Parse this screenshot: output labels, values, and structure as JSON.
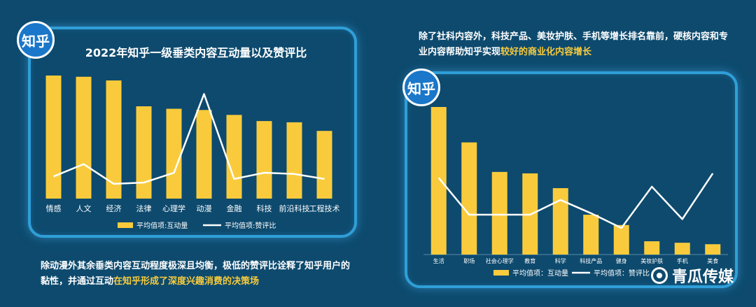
{
  "header": {
    "desc_right_part1": "除了社科内容外，科技产品、美妆护肤、手机等增长排名靠前，硬核内容和专业内容帮助知乎实现",
    "desc_right_highlight": "较好的商业化内容增长"
  },
  "badges": {
    "left": "知乎",
    "right": "知乎"
  },
  "footer": {
    "desc_left_part1": "除动漫外其余垂类内容互动程度极深且均衡，极低的赞评比诠释了知乎用户的黏性，并通过互动",
    "desc_left_highlight": "在知乎形成了深度兴趣消费的决策场"
  },
  "brand": {
    "name": "青瓜传媒"
  },
  "colors": {
    "bar": "#f9cb3c",
    "line": "#ffffff",
    "background": "#0d4a6e",
    "panel_border": "#2f9fd8"
  },
  "chart_data": [
    {
      "type": "bar",
      "title": "2022年知乎一级垂类内容互动量以及赞评比",
      "categories": [
        "情感",
        "人文",
        "经济",
        "法律",
        "心理学",
        "动漫",
        "金融",
        "科技",
        "前沿科技",
        "工程技术"
      ],
      "series": [
        {
          "name": "平均值项:互动量",
          "type": "bar",
          "values": [
            100,
            99,
            96,
            75,
            73,
            72,
            68,
            63,
            62,
            55
          ]
        },
        {
          "name": "平均值项:赞评比",
          "type": "line",
          "values": [
            18,
            28,
            12,
            13,
            21,
            85,
            16,
            21,
            20,
            16
          ]
        }
      ],
      "ylim": [
        0,
        100
      ],
      "legend": "bottom",
      "grid": false
    },
    {
      "type": "bar",
      "title": "",
      "categories": [
        "生活",
        "职场",
        "社会心理学",
        "教育",
        "科学",
        "科技产品",
        "健身",
        "美妆护肤",
        "手机",
        "美食"
      ],
      "series": [
        {
          "name": "平均值项：互动量",
          "type": "bar",
          "values": [
            100,
            76,
            56,
            55,
            45,
            27,
            20,
            9,
            8,
            7
          ]
        },
        {
          "name": "平均值项：赞评比",
          "type": "line",
          "values": [
            52,
            27,
            27,
            27,
            37,
            28,
            18,
            46,
            24,
            55
          ]
        }
      ],
      "ylim": [
        0,
        100
      ],
      "legend": "bottom",
      "grid": false
    }
  ]
}
